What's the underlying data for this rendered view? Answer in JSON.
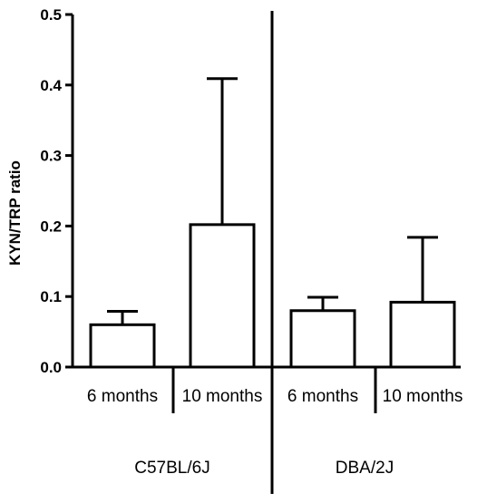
{
  "chart_data": {
    "type": "bar",
    "title": "",
    "xlabel": "",
    "ylabel": "KYN/TRP ratio",
    "ylim": [
      0,
      0.5
    ],
    "yticks": [
      "0.0",
      "0.1",
      "0.2",
      "0.3",
      "0.4",
      "0.5"
    ],
    "ytick_values": [
      0,
      0.1,
      0.2,
      0.3,
      0.4,
      0.5
    ],
    "groups": [
      "C57BL/6J",
      "DBA/2J"
    ],
    "categories": [
      "6 months",
      "10 months",
      "6 months",
      "10 months"
    ],
    "values": [
      0.06,
      0.202,
      0.08,
      0.092
    ],
    "error_upper": [
      0.079,
      0.409,
      0.099,
      0.184
    ],
    "grid": false,
    "legend": "none",
    "bar_fill": "#ffffff",
    "stroke_color": "#000000"
  }
}
